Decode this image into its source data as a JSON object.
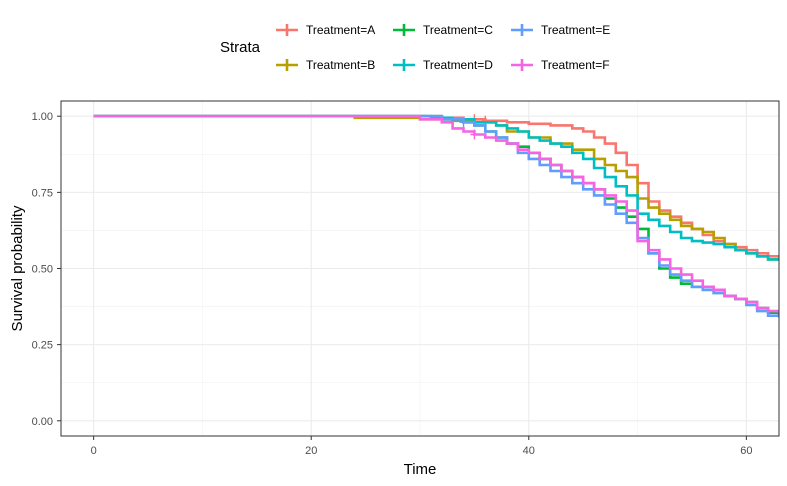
{
  "chart_data": {
    "type": "line",
    "xlabel": "Time",
    "ylabel": "Survival probability",
    "xlim": [
      -3,
      63
    ],
    "ylim": [
      -0.05,
      1.05
    ],
    "xticks": [
      0,
      20,
      40,
      60
    ],
    "yticks": [
      0.0,
      0.25,
      0.5,
      0.75,
      1.0
    ],
    "ytick_labels": [
      "0.00",
      "0.25",
      "0.50",
      "0.75",
      "1.00"
    ],
    "grid": true,
    "legend": {
      "title": "Strata",
      "position": "top",
      "columns": 3
    },
    "series": [
      {
        "name": "Treatment=A",
        "color": "#F8766D",
        "x": [
          0,
          30,
          32,
          34,
          36,
          38,
          40,
          42,
          44,
          45,
          46,
          47,
          48,
          49,
          50,
          51,
          52,
          53,
          54,
          55,
          56,
          57,
          58,
          59,
          60,
          61,
          62,
          63
        ],
        "y": [
          1.0,
          1.0,
          0.995,
          0.99,
          0.985,
          0.98,
          0.975,
          0.97,
          0.96,
          0.95,
          0.93,
          0.91,
          0.88,
          0.84,
          0.78,
          0.72,
          0.69,
          0.67,
          0.65,
          0.63,
          0.61,
          0.59,
          0.58,
          0.57,
          0.56,
          0.55,
          0.54,
          0.535
        ],
        "censor_x": [
          35,
          36
        ]
      },
      {
        "name": "Treatment=B",
        "color": "#B79F00",
        "x": [
          0,
          24,
          30,
          33,
          35,
          37,
          38,
          40,
          42,
          44,
          46,
          47,
          48,
          49,
          50,
          51,
          52,
          53,
          54,
          55,
          56,
          57,
          58,
          59,
          60,
          61,
          62,
          63
        ],
        "y": [
          1.0,
          0.995,
          0.99,
          0.985,
          0.98,
          0.97,
          0.95,
          0.93,
          0.91,
          0.89,
          0.86,
          0.84,
          0.82,
          0.8,
          0.73,
          0.7,
          0.68,
          0.66,
          0.64,
          0.63,
          0.62,
          0.6,
          0.58,
          0.56,
          0.55,
          0.54,
          0.53,
          0.525
        ],
        "censor_x": []
      },
      {
        "name": "Treatment=C",
        "color": "#00BA38",
        "x": [
          0,
          32,
          34,
          35,
          36,
          37,
          38,
          39,
          40,
          41,
          42,
          43,
          44,
          45,
          46,
          47,
          48,
          49,
          50,
          51,
          52,
          53,
          54,
          55,
          56,
          57,
          58,
          59,
          60,
          61,
          62,
          63
        ],
        "y": [
          1.0,
          0.99,
          0.98,
          0.97,
          0.95,
          0.93,
          0.91,
          0.9,
          0.88,
          0.86,
          0.84,
          0.82,
          0.8,
          0.78,
          0.76,
          0.73,
          0.7,
          0.67,
          0.63,
          0.55,
          0.5,
          0.47,
          0.45,
          0.44,
          0.43,
          0.42,
          0.41,
          0.4,
          0.39,
          0.37,
          0.355,
          0.34
        ],
        "censor_x": []
      },
      {
        "name": "Treatment=D",
        "color": "#00BFC4",
        "x": [
          0,
          31,
          33,
          35,
          37,
          38,
          39,
          40,
          41,
          42,
          43,
          44,
          45,
          46,
          47,
          48,
          49,
          50,
          51,
          52,
          53,
          54,
          55,
          56,
          57,
          58,
          59,
          60,
          61,
          62,
          63
        ],
        "y": [
          1.0,
          0.995,
          0.99,
          0.98,
          0.97,
          0.96,
          0.95,
          0.93,
          0.92,
          0.91,
          0.9,
          0.88,
          0.86,
          0.83,
          0.8,
          0.77,
          0.74,
          0.68,
          0.66,
          0.64,
          0.62,
          0.6,
          0.59,
          0.585,
          0.58,
          0.57,
          0.56,
          0.55,
          0.54,
          0.53,
          0.525
        ],
        "censor_x": []
      },
      {
        "name": "Treatment=E",
        "color": "#619CFF",
        "x": [
          0,
          32,
          34,
          35,
          36,
          37,
          38,
          39,
          40,
          41,
          42,
          43,
          44,
          45,
          46,
          47,
          48,
          49,
          50,
          51,
          52,
          53,
          54,
          55,
          56,
          57,
          58,
          59,
          60,
          61,
          62,
          63
        ],
        "y": [
          1.0,
          0.99,
          0.98,
          0.97,
          0.95,
          0.93,
          0.91,
          0.88,
          0.86,
          0.84,
          0.82,
          0.8,
          0.78,
          0.76,
          0.74,
          0.71,
          0.68,
          0.65,
          0.6,
          0.55,
          0.51,
          0.48,
          0.46,
          0.44,
          0.43,
          0.42,
          0.41,
          0.4,
          0.38,
          0.36,
          0.345,
          0.34
        ],
        "censor_x": [
          34
        ]
      },
      {
        "name": "Treatment=F",
        "color": "#F564E3",
        "x": [
          0,
          30,
          32,
          33,
          34,
          35,
          36,
          37,
          38,
          39,
          40,
          41,
          42,
          43,
          44,
          45,
          46,
          47,
          48,
          49,
          50,
          51,
          52,
          53,
          54,
          55,
          56,
          57,
          58,
          59,
          60,
          61,
          62,
          63
        ],
        "y": [
          1.0,
          0.99,
          0.98,
          0.96,
          0.95,
          0.94,
          0.93,
          0.92,
          0.91,
          0.89,
          0.88,
          0.86,
          0.84,
          0.82,
          0.8,
          0.78,
          0.76,
          0.74,
          0.72,
          0.69,
          0.59,
          0.56,
          0.53,
          0.5,
          0.48,
          0.46,
          0.44,
          0.43,
          0.41,
          0.4,
          0.39,
          0.37,
          0.36,
          0.355
        ],
        "censor_x": [
          35
        ]
      }
    ]
  }
}
